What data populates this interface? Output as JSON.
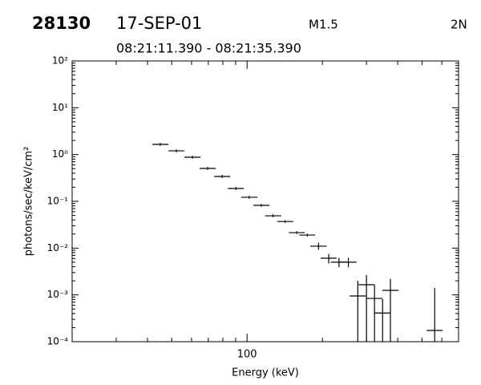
{
  "chart_data": {
    "type": "errorbar",
    "title": "28130",
    "date_label": "17-SEP-01",
    "goes_class": "M1.5",
    "optical_class": "2N",
    "subtitle": "08:21:11.390 - 08:21:35.390",
    "x_label": "Energy (keV)",
    "y_label": "photons/sec/keV/cm²",
    "log_x": true,
    "log_y": true,
    "color": "#000000",
    "xlim": [
      20,
      700
    ],
    "ylim": [
      0.0001,
      100
    ],
    "xticks": [
      100
    ],
    "xminorticks": [
      30,
      40,
      50,
      60,
      70,
      80,
      90,
      200,
      300,
      400,
      500,
      600,
      700
    ],
    "yticks": [
      {
        "value": 0.0001,
        "label": "10⁻⁴"
      },
      {
        "value": 0.001,
        "label": "10⁻³"
      },
      {
        "value": 0.01,
        "label": "10⁻²"
      },
      {
        "value": 0.1,
        "label": "10⁻¹"
      },
      {
        "value": 1,
        "label": "10⁰"
      },
      {
        "value": 10,
        "label": "10¹"
      },
      {
        "value": 100,
        "label": "10²"
      }
    ],
    "yminorticks": [
      0.0002,
      0.0003,
      0.0004,
      0.0005,
      0.0006,
      0.0007,
      0.0008,
      0.0009,
      0.002,
      0.003,
      0.004,
      0.005,
      0.006,
      0.007,
      0.008,
      0.009,
      0.02,
      0.03,
      0.04,
      0.05,
      0.06,
      0.07,
      0.08,
      0.09,
      0.2,
      0.3,
      0.4,
      0.5,
      0.6,
      0.7,
      0.8,
      0.9,
      2,
      3,
      4,
      5,
      6,
      7,
      8,
      9,
      20,
      30,
      40,
      50,
      60,
      70,
      80,
      90
    ],
    "x": [
      45.0,
      52.2,
      60.5,
      69.6,
      79.5,
      90.2,
      102,
      114,
      127,
      142,
      158,
      174,
      193,
      212,
      233,
      254,
      277,
      300,
      323,
      348,
      374,
      562
    ],
    "x_low": [
      41.8,
      48.5,
      56.2,
      64.6,
      73.8,
      83.8,
      94.7,
      106,
      118,
      132,
      147,
      162,
      179,
      197,
      216,
      236,
      257,
      279,
      300,
      323,
      347,
      522
    ],
    "x_high": [
      48.5,
      56.2,
      65.2,
      75.0,
      85.6,
      97.1,
      110,
      123,
      137,
      153,
      170,
      187,
      208,
      228,
      251,
      274,
      298,
      323,
      348,
      375,
      403,
      605
    ],
    "values": [
      1.65,
      1.2,
      0.877,
      0.505,
      0.34,
      0.188,
      0.122,
      0.082,
      0.049,
      0.037,
      0.0214,
      0.019,
      0.011,
      0.0061,
      0.005,
      0.005,
      0.00095,
      0.00165,
      0.00084,
      0.00041,
      0.00125,
      0.000174
    ],
    "y_low": [
      null,
      null,
      null,
      null,
      null,
      null,
      null,
      null,
      null,
      null,
      null,
      null,
      0.0092,
      0.0047,
      0.0039,
      0.0039,
      5e-05,
      5e-05,
      5e-05,
      5e-05,
      5e-05,
      5e-05
    ],
    "y_high": [
      null,
      null,
      null,
      null,
      null,
      null,
      null,
      null,
      null,
      null,
      null,
      null,
      0.013,
      0.0075,
      0.0062,
      0.0062,
      0.002,
      0.00265,
      0.00165,
      0.00081,
      0.0022,
      0.0014
    ]
  }
}
